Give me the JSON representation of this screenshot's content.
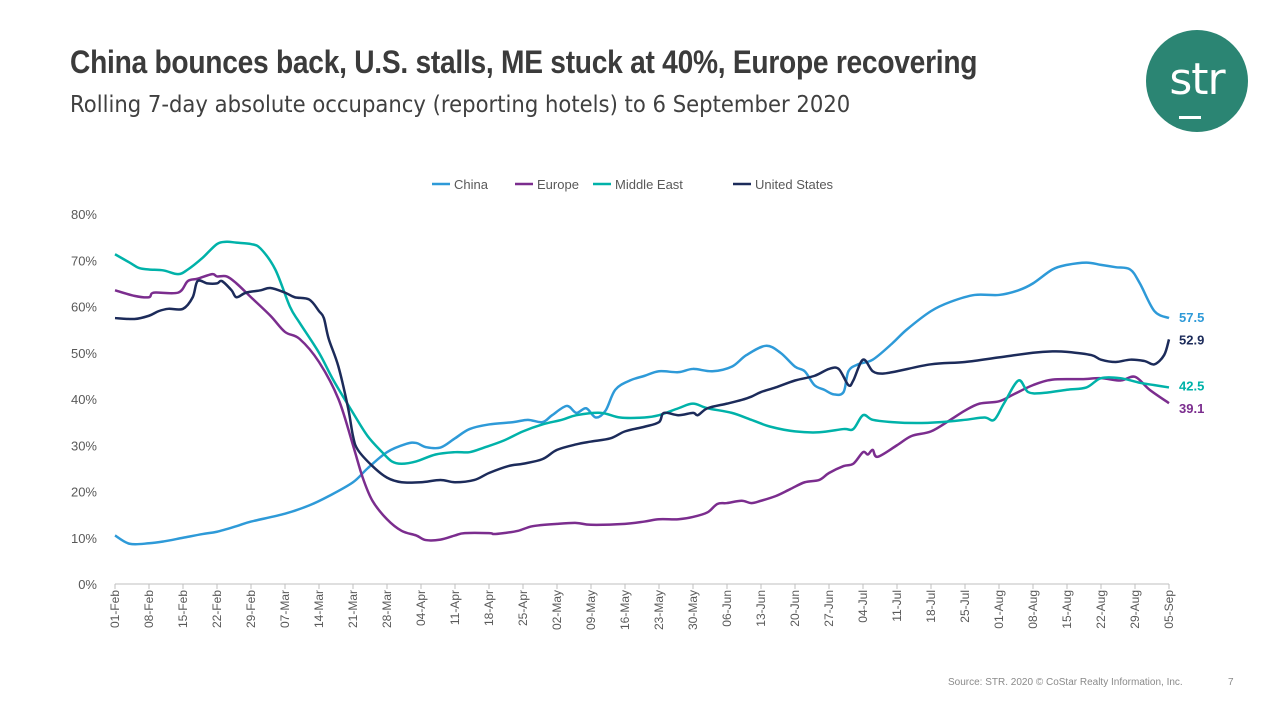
{
  "title": "China bounces back, U.S. stalls, ME stuck at 40%, Europe recovering",
  "subtitle": "Rolling 7-day absolute occupancy (reporting hotels) to 6 September 2020",
  "logo": {
    "text": "str",
    "color": "#2b8573"
  },
  "footer": {
    "source": "Source: STR. 2020 © CoStar Realty Information, Inc.",
    "page": "7"
  },
  "chart_data": {
    "type": "line",
    "title": "Rolling 7-day absolute occupancy (reporting hotels) to 6 September 2020",
    "xlabel": "",
    "ylabel": "",
    "ylim": [
      0,
      80
    ],
    "yticks": [
      "0%",
      "10%",
      "20%",
      "30%",
      "40%",
      "50%",
      "60%",
      "70%",
      "80%"
    ],
    "xlim_days": [
      0,
      217
    ],
    "x_unit": "days since 01-Feb-2020",
    "xticks": [
      "01-Feb",
      "08-Feb",
      "15-Feb",
      "22-Feb",
      "29-Feb",
      "07-Mar",
      "14-Mar",
      "21-Mar",
      "28-Mar",
      "04-Apr",
      "11-Apr",
      "18-Apr",
      "25-Apr",
      "02-May",
      "09-May",
      "16-May",
      "23-May",
      "30-May",
      "06-Jun",
      "13-Jun",
      "20-Jun",
      "27-Jun",
      "04-Jul",
      "11-Jul",
      "18-Jul",
      "25-Jul",
      "01-Aug",
      "08-Aug",
      "15-Aug",
      "22-Aug",
      "29-Aug",
      "05-Sep"
    ],
    "grid": false,
    "legend": "top-center",
    "series": [
      {
        "name": "China",
        "color": "#2e9ad8",
        "end_label": "57.5",
        "points": [
          [
            0,
            10.5
          ],
          [
            3,
            8.7
          ],
          [
            7,
            8.8
          ],
          [
            10,
            9.2
          ],
          [
            14,
            10
          ],
          [
            18,
            10.8
          ],
          [
            21,
            11.3
          ],
          [
            25,
            12.5
          ],
          [
            28,
            13.5
          ],
          [
            35,
            15.2
          ],
          [
            40,
            17
          ],
          [
            44,
            19
          ],
          [
            49,
            22
          ],
          [
            52,
            25
          ],
          [
            56,
            28.5
          ],
          [
            60,
            30.3
          ],
          [
            62,
            30.5
          ],
          [
            64,
            29.6
          ],
          [
            67,
            29.5
          ],
          [
            70,
            31.5
          ],
          [
            73,
            33.5
          ],
          [
            77,
            34.5
          ],
          [
            82,
            35
          ],
          [
            85,
            35.5
          ],
          [
            88,
            35
          ],
          [
            90,
            36.5
          ],
          [
            93,
            38.5
          ],
          [
            95,
            37
          ],
          [
            97,
            38
          ],
          [
            99,
            36
          ],
          [
            101,
            37.5
          ],
          [
            103,
            42
          ],
          [
            106,
            44
          ],
          [
            109,
            45
          ],
          [
            112,
            46
          ],
          [
            116,
            45.8
          ],
          [
            119,
            46.5
          ],
          [
            123,
            46
          ],
          [
            127,
            47
          ],
          [
            130,
            49.5
          ],
          [
            134,
            51.5
          ],
          [
            137,
            50
          ],
          [
            140,
            47
          ],
          [
            142,
            46
          ],
          [
            144,
            43
          ],
          [
            146,
            42
          ],
          [
            148,
            41
          ],
          [
            150,
            41.5
          ],
          [
            151,
            46
          ],
          [
            153,
            47.5
          ],
          [
            156,
            48.5
          ],
          [
            160,
            52
          ],
          [
            163,
            55
          ],
          [
            168,
            59
          ],
          [
            172,
            61
          ],
          [
            177,
            62.5
          ],
          [
            182,
            62.5
          ],
          [
            186,
            63.5
          ],
          [
            189,
            65
          ],
          [
            193,
            68
          ],
          [
            196,
            69
          ],
          [
            200,
            69.5
          ],
          [
            203,
            69
          ],
          [
            206,
            68.5
          ],
          [
            209,
            68
          ],
          [
            211,
            65
          ],
          [
            214,
            59
          ],
          [
            217,
            57.5
          ]
        ]
      },
      {
        "name": "Europe",
        "color": "#7b2d8e",
        "end_label": "39.1",
        "points": [
          [
            0,
            63.5
          ],
          [
            4,
            62.3
          ],
          [
            7,
            62
          ],
          [
            8,
            63
          ],
          [
            13,
            63
          ],
          [
            15,
            65.5
          ],
          [
            17,
            66
          ],
          [
            20,
            67
          ],
          [
            21,
            66.5
          ],
          [
            23,
            66.5
          ],
          [
            25,
            65
          ],
          [
            28,
            62
          ],
          [
            32,
            58
          ],
          [
            35,
            54.5
          ],
          [
            38,
            53
          ],
          [
            42,
            48
          ],
          [
            46,
            40
          ],
          [
            49,
            30
          ],
          [
            51,
            23
          ],
          [
            53,
            18
          ],
          [
            56,
            14
          ],
          [
            59,
            11.5
          ],
          [
            62,
            10.5
          ],
          [
            64,
            9.5
          ],
          [
            67,
            9.6
          ],
          [
            70,
            10.5
          ],
          [
            72,
            11
          ],
          [
            77,
            11
          ],
          [
            78,
            10.8
          ],
          [
            80,
            11
          ],
          [
            83,
            11.5
          ],
          [
            86,
            12.5
          ],
          [
            91,
            13
          ],
          [
            95,
            13.2
          ],
          [
            98,
            12.8
          ],
          [
            105,
            13
          ],
          [
            109,
            13.5
          ],
          [
            112,
            14
          ],
          [
            116,
            14
          ],
          [
            119,
            14.5
          ],
          [
            122,
            15.5
          ],
          [
            124,
            17.3
          ],
          [
            126,
            17.5
          ],
          [
            129,
            18
          ],
          [
            131,
            17.5
          ],
          [
            133,
            18
          ],
          [
            136,
            19
          ],
          [
            139,
            20.5
          ],
          [
            142,
            22
          ],
          [
            145,
            22.5
          ],
          [
            147,
            24
          ],
          [
            150,
            25.5
          ],
          [
            152,
            26
          ],
          [
            154,
            28.5
          ],
          [
            155,
            28
          ],
          [
            156,
            29
          ],
          [
            157,
            27.5
          ],
          [
            161,
            30
          ],
          [
            164,
            32
          ],
          [
            168,
            33
          ],
          [
            172,
            35.5
          ],
          [
            175,
            37.5
          ],
          [
            178,
            39
          ],
          [
            182,
            39.5
          ],
          [
            185,
            41
          ],
          [
            189,
            43
          ],
          [
            193,
            44.2
          ],
          [
            199,
            44.3
          ],
          [
            203,
            44.5
          ],
          [
            207,
            44
          ],
          [
            210,
            44.8
          ],
          [
            213,
            42
          ],
          [
            217,
            39.1
          ]
        ]
      },
      {
        "name": "Middle East",
        "color": "#00b2a9",
        "end_label": "42.5",
        "points": [
          [
            0,
            71.3
          ],
          [
            3,
            69.5
          ],
          [
            5,
            68.3
          ],
          [
            7,
            68
          ],
          [
            10,
            67.8
          ],
          [
            13,
            67
          ],
          [
            15,
            68
          ],
          [
            18,
            70.5
          ],
          [
            21,
            73.5
          ],
          [
            23,
            74
          ],
          [
            25,
            73.8
          ],
          [
            28,
            73.5
          ],
          [
            30,
            72.5
          ],
          [
            33,
            68
          ],
          [
            36,
            60
          ],
          [
            38,
            56.5
          ],
          [
            42,
            50
          ],
          [
            45,
            44
          ],
          [
            49,
            37
          ],
          [
            52,
            32
          ],
          [
            55,
            28.5
          ],
          [
            57,
            26.5
          ],
          [
            59,
            26
          ],
          [
            62,
            26.5
          ],
          [
            66,
            28
          ],
          [
            70,
            28.5
          ],
          [
            73,
            28.5
          ],
          [
            76,
            29.5
          ],
          [
            80,
            31
          ],
          [
            84,
            33
          ],
          [
            88,
            34.5
          ],
          [
            92,
            35.5
          ],
          [
            95,
            36.5
          ],
          [
            100,
            37
          ],
          [
            104,
            36
          ],
          [
            109,
            36
          ],
          [
            112,
            36.5
          ],
          [
            116,
            38
          ],
          [
            119,
            39
          ],
          [
            122,
            38
          ],
          [
            127,
            37
          ],
          [
            131,
            35.5
          ],
          [
            135,
            34
          ],
          [
            140,
            33
          ],
          [
            145,
            32.8
          ],
          [
            150,
            33.5
          ],
          [
            152,
            33.5
          ],
          [
            154,
            36.5
          ],
          [
            156,
            35.5
          ],
          [
            160,
            35
          ],
          [
            165,
            34.8
          ],
          [
            170,
            35
          ],
          [
            175,
            35.5
          ],
          [
            179,
            36
          ],
          [
            181,
            35.5
          ],
          [
            183,
            39
          ],
          [
            186,
            44
          ],
          [
            188,
            41.5
          ],
          [
            191,
            41.3
          ],
          [
            196,
            42
          ],
          [
            200,
            42.5
          ],
          [
            203,
            44.5
          ],
          [
            207,
            44.5
          ],
          [
            211,
            43.5
          ],
          [
            214,
            43
          ],
          [
            217,
            42.5
          ]
        ]
      },
      {
        "name": "United States",
        "color": "#1c2b5a",
        "end_label": "52.9",
        "points": [
          [
            0,
            57.5
          ],
          [
            4,
            57.3
          ],
          [
            7,
            58
          ],
          [
            9,
            59
          ],
          [
            11,
            59.5
          ],
          [
            14,
            59.5
          ],
          [
            16,
            62
          ],
          [
            17,
            65.5
          ],
          [
            19,
            65
          ],
          [
            21,
            65
          ],
          [
            22,
            65.5
          ],
          [
            24,
            63.5
          ],
          [
            25,
            62
          ],
          [
            27,
            63
          ],
          [
            30,
            63.5
          ],
          [
            32,
            64
          ],
          [
            35,
            63
          ],
          [
            37,
            62
          ],
          [
            40,
            61.5
          ],
          [
            42,
            59
          ],
          [
            43,
            57.5
          ],
          [
            44,
            53
          ],
          [
            46,
            47
          ],
          [
            48,
            38
          ],
          [
            49,
            32
          ],
          [
            50,
            29
          ],
          [
            53,
            25.5
          ],
          [
            56,
            23
          ],
          [
            59,
            22
          ],
          [
            63,
            22
          ],
          [
            67,
            22.5
          ],
          [
            70,
            22
          ],
          [
            74,
            22.5
          ],
          [
            77,
            24
          ],
          [
            81,
            25.5
          ],
          [
            84,
            26
          ],
          [
            88,
            27
          ],
          [
            91,
            29
          ],
          [
            95,
            30.2
          ],
          [
            98,
            30.8
          ],
          [
            102,
            31.5
          ],
          [
            105,
            33
          ],
          [
            109,
            34
          ],
          [
            112,
            35
          ],
          [
            113,
            37
          ],
          [
            116,
            36.5
          ],
          [
            119,
            37
          ],
          [
            120,
            36.5
          ],
          [
            122,
            38
          ],
          [
            126,
            39
          ],
          [
            129,
            39.8
          ],
          [
            131,
            40.5
          ],
          [
            133,
            41.5
          ],
          [
            136,
            42.5
          ],
          [
            140,
            44
          ],
          [
            144,
            45
          ],
          [
            147,
            46.5
          ],
          [
            149,
            46.5
          ],
          [
            151,
            43
          ],
          [
            152,
            44
          ],
          [
            154,
            48.5
          ],
          [
            156,
            46
          ],
          [
            158,
            45.5
          ],
          [
            161,
            46
          ],
          [
            168,
            47.5
          ],
          [
            175,
            48
          ],
          [
            182,
            49
          ],
          [
            189,
            50
          ],
          [
            193,
            50.3
          ],
          [
            196,
            50.2
          ],
          [
            201,
            49.5
          ],
          [
            203,
            48.5
          ],
          [
            206,
            48
          ],
          [
            209,
            48.5
          ],
          [
            212,
            48.2
          ],
          [
            214,
            47.5
          ],
          [
            216,
            49.5
          ],
          [
            217,
            52.9
          ]
        ]
      }
    ]
  }
}
